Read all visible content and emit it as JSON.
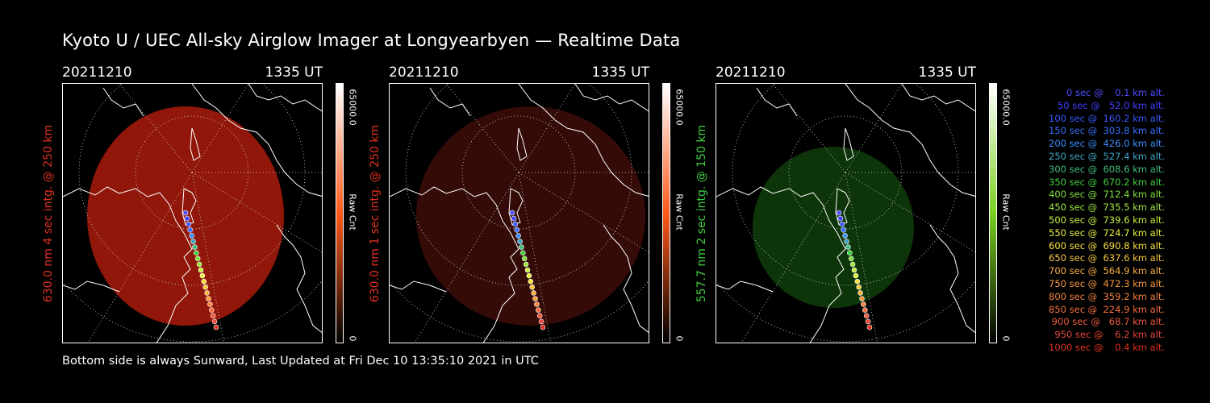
{
  "title": "Kyoto U / UEC All-sky Airglow Imager at Longyearbyen — Realtime Data",
  "footer": "Bottom side is always Sunward, Last Updated at Fri Dec 10 13:35:10 2021 in UTC",
  "panels": [
    {
      "date": "20211210",
      "time": "1335 UT",
      "ylabel": "630.0 nm  4 sec intg. @ 250 km",
      "label_color": "#e03020",
      "cbar_max": "65000.0",
      "cbar_unit": "Raw Cnt",
      "cbar_min": "0",
      "glow_color": "#a01a0a",
      "cbar_color": "#ff5a1a"
    },
    {
      "date": "20211210",
      "time": "1335 UT",
      "ylabel": "630.0 nm  1 sec intg. @ 250 km",
      "label_color": "#e03020",
      "cbar_max": "65000.0",
      "cbar_unit": "Raw Cnt",
      "cbar_min": "0",
      "glow_color": "#3a0c08",
      "cbar_color": "#ff5a1a"
    },
    {
      "date": "20211210",
      "time": "1335 UT",
      "ylabel": "557.7 nm  2 sec intg. @ 150 km",
      "label_color": "#40d040",
      "cbar_max": "65000.0",
      "cbar_unit": "Raw Cnt",
      "cbar_min": "0",
      "glow_color": "#0f3a0a",
      "cbar_color": "#7ad020"
    }
  ],
  "legend": [
    {
      "text": "   0 sec @    0.1 km alt.",
      "color": "#5050ff"
    },
    {
      "text": "  50 sec @   52.0 km alt.",
      "color": "#4040ff"
    },
    {
      "text": " 100 sec @  160.2 km alt.",
      "color": "#3a5aff"
    },
    {
      "text": " 150 sec @  303.8 km alt.",
      "color": "#3a70ff"
    },
    {
      "text": " 200 sec @  426.0 km alt.",
      "color": "#3a90ff"
    },
    {
      "text": " 250 sec @  527.4 km alt.",
      "color": "#40a8c8"
    },
    {
      "text": " 300 sec @  608.6 km alt.",
      "color": "#40c080"
    },
    {
      "text": " 350 sec @  670.2 km alt.",
      "color": "#40d040"
    },
    {
      "text": " 400 sec @  712.4 km alt.",
      "color": "#80e040"
    },
    {
      "text": " 450 sec @  735.5 km alt.",
      "color": "#a0e840"
    },
    {
      "text": " 500 sec @  739.6 km alt.",
      "color": "#c8f040"
    },
    {
      "text": " 550 sec @  724.7 km alt.",
      "color": "#e8f040"
    },
    {
      "text": " 600 sec @  690.8 km alt.",
      "color": "#f8e040"
    },
    {
      "text": " 650 sec @  637.6 km alt.",
      "color": "#f8c840"
    },
    {
      "text": " 700 sec @  564.9 km alt.",
      "color": "#f8b040"
    },
    {
      "text": " 750 sec @  472.3 km alt.",
      "color": "#f89a40"
    },
    {
      "text": " 800 sec @  359.2 km alt.",
      "color": "#f88440"
    },
    {
      "text": " 850 sec @  224.9 km alt.",
      "color": "#f87040"
    },
    {
      "text": " 900 sec @   68.7 km alt.",
      "color": "#f05a40"
    },
    {
      "text": " 950 sec @    6.2 km alt.",
      "color": "#e84838"
    },
    {
      "text": "1000 sec @    0.4 km alt.",
      "color": "#e03020"
    }
  ]
}
